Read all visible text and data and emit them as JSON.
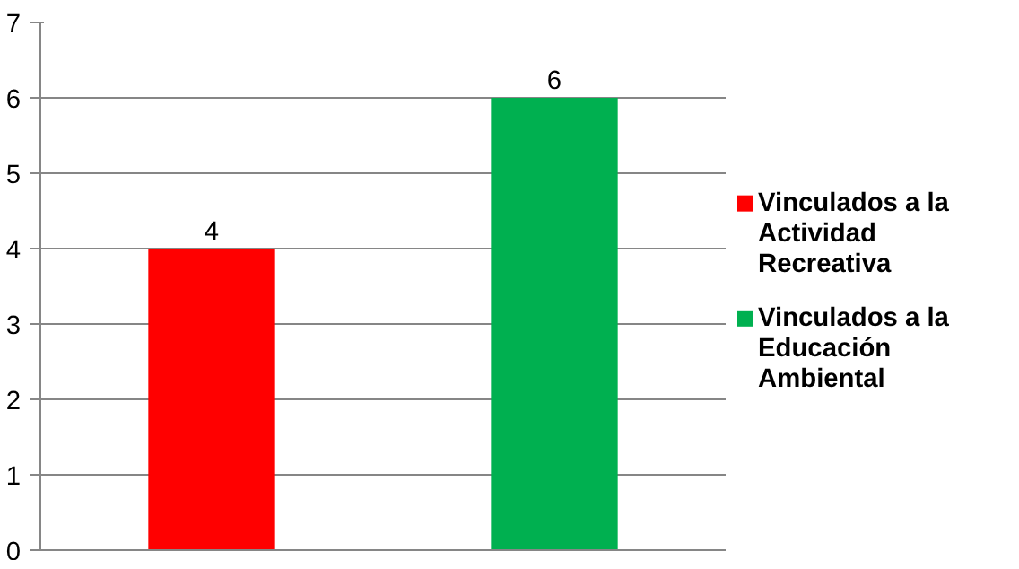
{
  "chart_data": {
    "type": "bar",
    "categories": [
      null,
      null
    ],
    "series": [
      {
        "name": "Vinculados a la Actividad Recreativa",
        "color": "#ff0000",
        "values": [
          4,
          null
        ]
      },
      {
        "name": "Vinculados a la Educación Ambiental",
        "color": "#00b050",
        "values": [
          null,
          6
        ]
      }
    ],
    "ylim": [
      0,
      7
    ],
    "yticks": [
      0,
      1,
      2,
      3,
      4,
      5,
      6,
      7
    ],
    "grid": "y",
    "legend": "right",
    "data_labels": true
  }
}
